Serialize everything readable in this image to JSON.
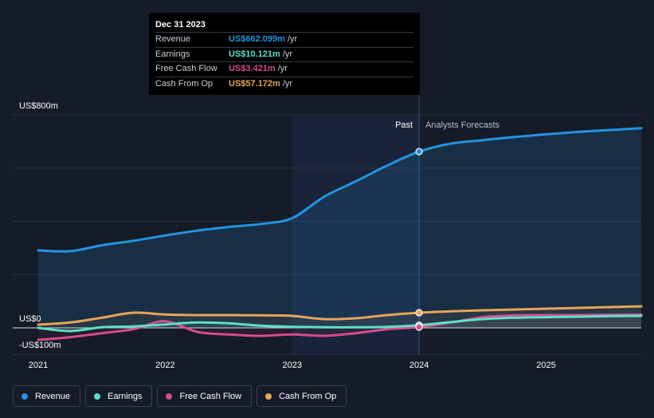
{
  "chart_data": {
    "type": "line",
    "y_labels": [
      "US$800m",
      "US$0",
      "-US$100m"
    ],
    "ylim": [
      -100,
      800
    ],
    "xlim": [
      2021,
      2025.75
    ],
    "x_ticks": [
      "2021",
      "2022",
      "2023",
      "2024",
      "2025"
    ],
    "past_label": "Past",
    "forecast_label": "Analysts Forecasts",
    "past_end": 2024.0,
    "highlight_start": 2023.0,
    "series": [
      {
        "name": "Revenue",
        "color": "#2394df",
        "points": [
          [
            2021.0,
            291
          ],
          [
            2021.25,
            288
          ],
          [
            2021.5,
            310
          ],
          [
            2021.75,
            327
          ],
          [
            2022.0,
            347
          ],
          [
            2022.25,
            365
          ],
          [
            2022.5,
            379
          ],
          [
            2022.75,
            390
          ],
          [
            2023.0,
            412
          ],
          [
            2023.25,
            492
          ],
          [
            2023.5,
            550
          ],
          [
            2023.75,
            610
          ],
          [
            2024.0,
            662
          ],
          [
            2024.25,
            692
          ],
          [
            2024.5,
            705
          ],
          [
            2024.75,
            717
          ],
          [
            2025.0,
            727
          ],
          [
            2025.25,
            736
          ],
          [
            2025.5,
            743
          ],
          [
            2025.75,
            750
          ]
        ]
      },
      {
        "name": "Earnings",
        "color": "#5ee0c8",
        "points": [
          [
            2021.0,
            0
          ],
          [
            2021.25,
            -12
          ],
          [
            2021.5,
            2
          ],
          [
            2021.75,
            5
          ],
          [
            2022.0,
            13
          ],
          [
            2022.25,
            20
          ],
          [
            2022.5,
            17
          ],
          [
            2022.75,
            8
          ],
          [
            2023.0,
            4
          ],
          [
            2023.25,
            2
          ],
          [
            2023.5,
            2
          ],
          [
            2023.75,
            4
          ],
          [
            2024.0,
            10
          ],
          [
            2024.25,
            22
          ],
          [
            2024.5,
            33
          ],
          [
            2024.75,
            38
          ],
          [
            2025.0,
            40
          ],
          [
            2025.25,
            42
          ],
          [
            2025.5,
            44
          ],
          [
            2025.75,
            45
          ]
        ]
      },
      {
        "name": "Free Cash Flow",
        "color": "#d64c8b",
        "points": [
          [
            2021.0,
            -45
          ],
          [
            2021.25,
            -35
          ],
          [
            2021.5,
            -20
          ],
          [
            2021.75,
            -5
          ],
          [
            2022.0,
            25
          ],
          [
            2022.25,
            -15
          ],
          [
            2022.5,
            -25
          ],
          [
            2022.75,
            -30
          ],
          [
            2023.0,
            -25
          ],
          [
            2023.25,
            -30
          ],
          [
            2023.5,
            -20
          ],
          [
            2023.75,
            -5
          ],
          [
            2024.0,
            3
          ],
          [
            2024.25,
            20
          ],
          [
            2024.5,
            40
          ],
          [
            2024.75,
            47
          ],
          [
            2025.0,
            48
          ],
          [
            2025.25,
            48
          ],
          [
            2025.5,
            49
          ],
          [
            2025.75,
            50
          ]
        ]
      },
      {
        "name": "Cash From Op",
        "color": "#e8a458",
        "points": [
          [
            2021.0,
            12
          ],
          [
            2021.25,
            20
          ],
          [
            2021.5,
            38
          ],
          [
            2021.75,
            57
          ],
          [
            2022.0,
            50
          ],
          [
            2022.25,
            48
          ],
          [
            2022.5,
            48
          ],
          [
            2022.75,
            47
          ],
          [
            2023.0,
            45
          ],
          [
            2023.25,
            33
          ],
          [
            2023.5,
            36
          ],
          [
            2023.75,
            48
          ],
          [
            2024.0,
            57
          ],
          [
            2024.25,
            62
          ],
          [
            2024.5,
            66
          ],
          [
            2024.75,
            69
          ],
          [
            2025.0,
            72
          ],
          [
            2025.25,
            75
          ],
          [
            2025.5,
            78
          ],
          [
            2025.75,
            81
          ]
        ]
      }
    ]
  },
  "tooltip": {
    "date": "Dec 31 2023",
    "rows": [
      {
        "name": "Revenue",
        "value": "US$662.099m",
        "unit": "/yr",
        "color": "#2394df"
      },
      {
        "name": "Earnings",
        "value": "US$10.121m",
        "unit": "/yr",
        "color": "#5ee0c8"
      },
      {
        "name": "Free Cash Flow",
        "value": "US$3.421m",
        "unit": "/yr",
        "color": "#d64c8b"
      },
      {
        "name": "Cash From Op",
        "value": "US$57.172m",
        "unit": "/yr",
        "color": "#e8a458"
      }
    ]
  },
  "legend": [
    {
      "label": "Revenue",
      "color": "#2394df"
    },
    {
      "label": "Earnings",
      "color": "#5ee0c8"
    },
    {
      "label": "Free Cash Flow",
      "color": "#d64c8b"
    },
    {
      "label": "Cash From Op",
      "color": "#e8a458"
    }
  ]
}
